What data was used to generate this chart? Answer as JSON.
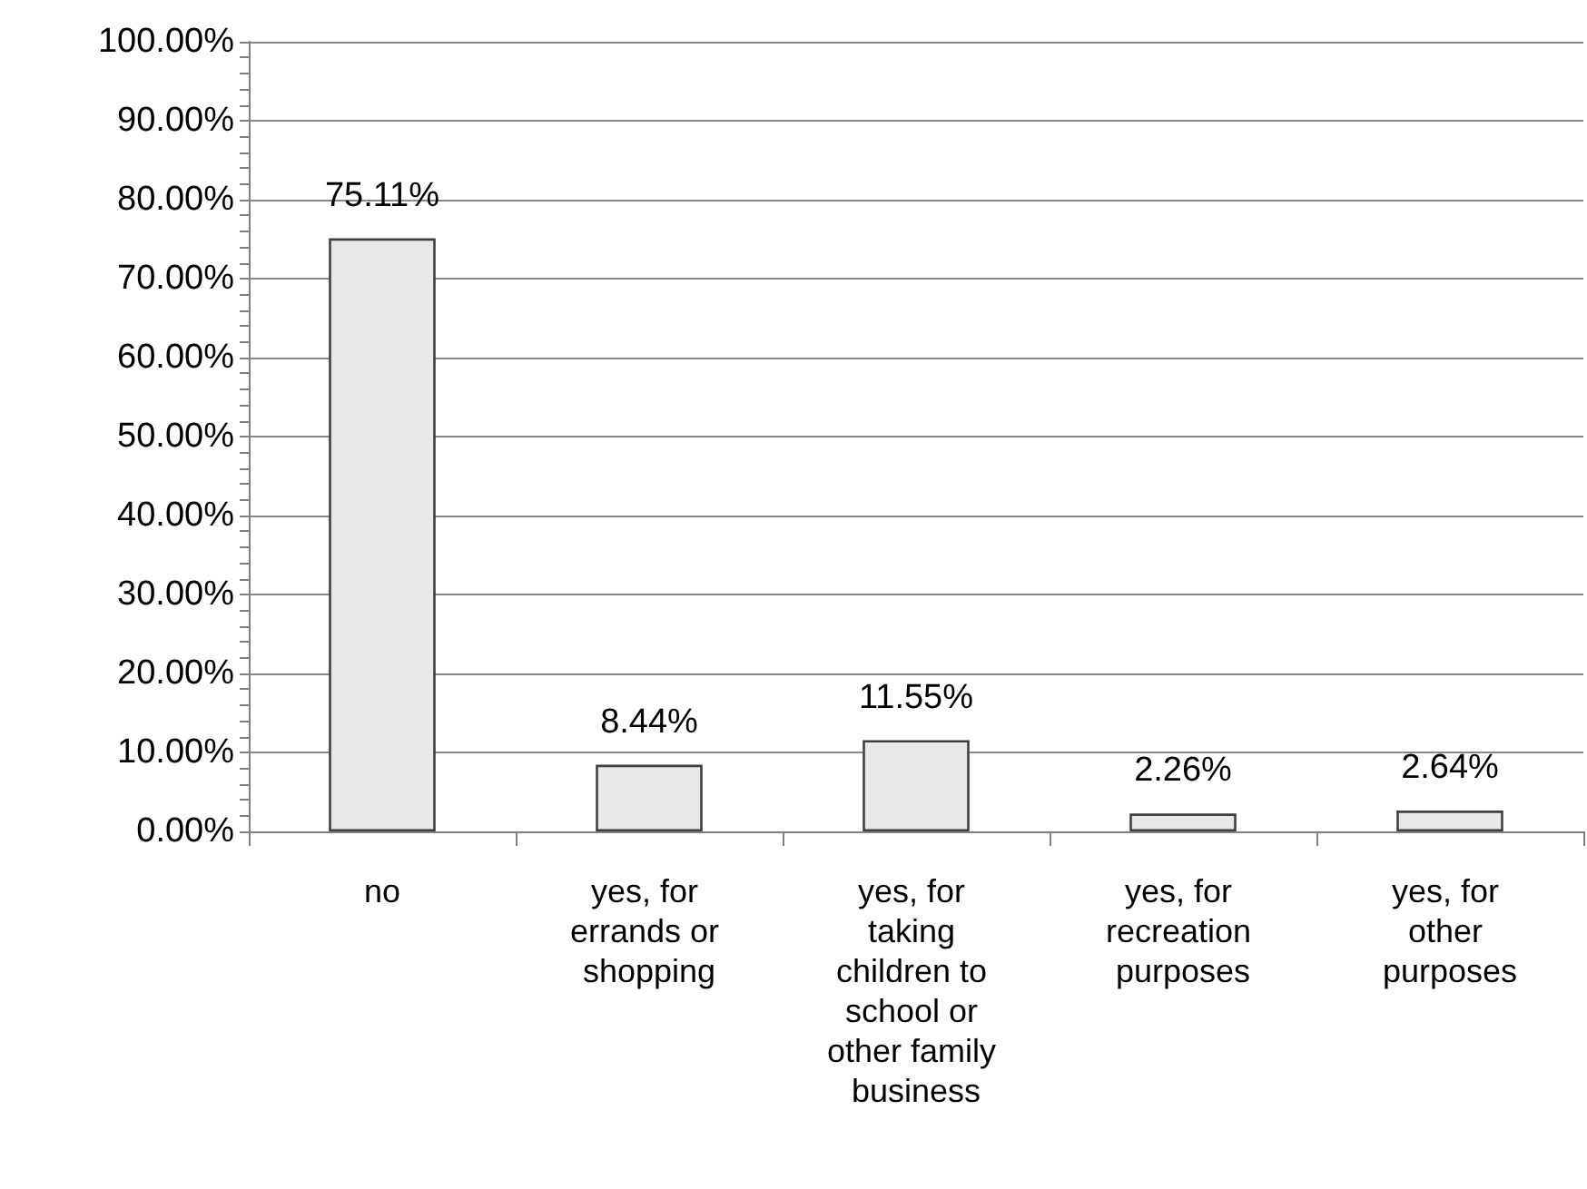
{
  "chart_data": {
    "type": "bar",
    "categories": [
      "no",
      "yes, for errands or shopping",
      "yes, for taking children to school or other family business",
      "yes, for recreation purposes",
      "yes, for other purposes"
    ],
    "values": [
      75.11,
      8.44,
      11.55,
      2.26,
      2.64
    ],
    "value_labels": [
      "75.11%",
      "8.44%",
      "11.55%",
      "2.26%",
      "2.64%"
    ],
    "color": "#e8e8e8",
    "ylim": [
      0,
      100
    ],
    "yticks": [
      {
        "value": 0,
        "label": "0.00%"
      },
      {
        "value": 2,
        "label": null
      },
      {
        "value": 4,
        "label": null
      },
      {
        "value": 6,
        "label": null
      },
      {
        "value": 8,
        "label": null
      },
      {
        "value": 10,
        "label": "10.00%"
      },
      {
        "value": 12,
        "label": null
      },
      {
        "value": 14,
        "label": null
      },
      {
        "value": 16,
        "label": null
      },
      {
        "value": 18,
        "label": null
      },
      {
        "value": 20,
        "label": "20.00%"
      },
      {
        "value": 22,
        "label": null
      },
      {
        "value": 24,
        "label": null
      },
      {
        "value": 26,
        "label": null
      },
      {
        "value": 28,
        "label": null
      },
      {
        "value": 30,
        "label": "30.00%"
      },
      {
        "value": 32,
        "label": null
      },
      {
        "value": 34,
        "label": null
      },
      {
        "value": 36,
        "label": null
      },
      {
        "value": 38,
        "label": null
      },
      {
        "value": 40,
        "label": "40.00%"
      },
      {
        "value": 42,
        "label": null
      },
      {
        "value": 44,
        "label": null
      },
      {
        "value": 46,
        "label": null
      },
      {
        "value": 48,
        "label": null
      },
      {
        "value": 50,
        "label": "50.00%"
      },
      {
        "value": 52,
        "label": null
      },
      {
        "value": 54,
        "label": null
      },
      {
        "value": 56,
        "label": null
      },
      {
        "value": 58,
        "label": null
      },
      {
        "value": 60,
        "label": "60.00%"
      },
      {
        "value": 62,
        "label": null
      },
      {
        "value": 64,
        "label": null
      },
      {
        "value": 66,
        "label": null
      },
      {
        "value": 68,
        "label": null
      },
      {
        "value": 70,
        "label": "70.00%"
      },
      {
        "value": 72,
        "label": null
      },
      {
        "value": 74,
        "label": null
      },
      {
        "value": 76,
        "label": null
      },
      {
        "value": 78,
        "label": null
      },
      {
        "value": 80,
        "label": "80.00%"
      },
      {
        "value": 82,
        "label": null
      },
      {
        "value": 84,
        "label": null
      },
      {
        "value": 86,
        "label": null
      },
      {
        "value": 88,
        "label": null
      },
      {
        "value": 90,
        "label": "90.00%"
      },
      {
        "value": 92,
        "label": null
      },
      {
        "value": 94,
        "label": null
      },
      {
        "value": 96,
        "label": null
      },
      {
        "value": 98,
        "label": null
      },
      {
        "value": 100,
        "label": "100.00%"
      }
    ],
    "grid": "y"
  }
}
